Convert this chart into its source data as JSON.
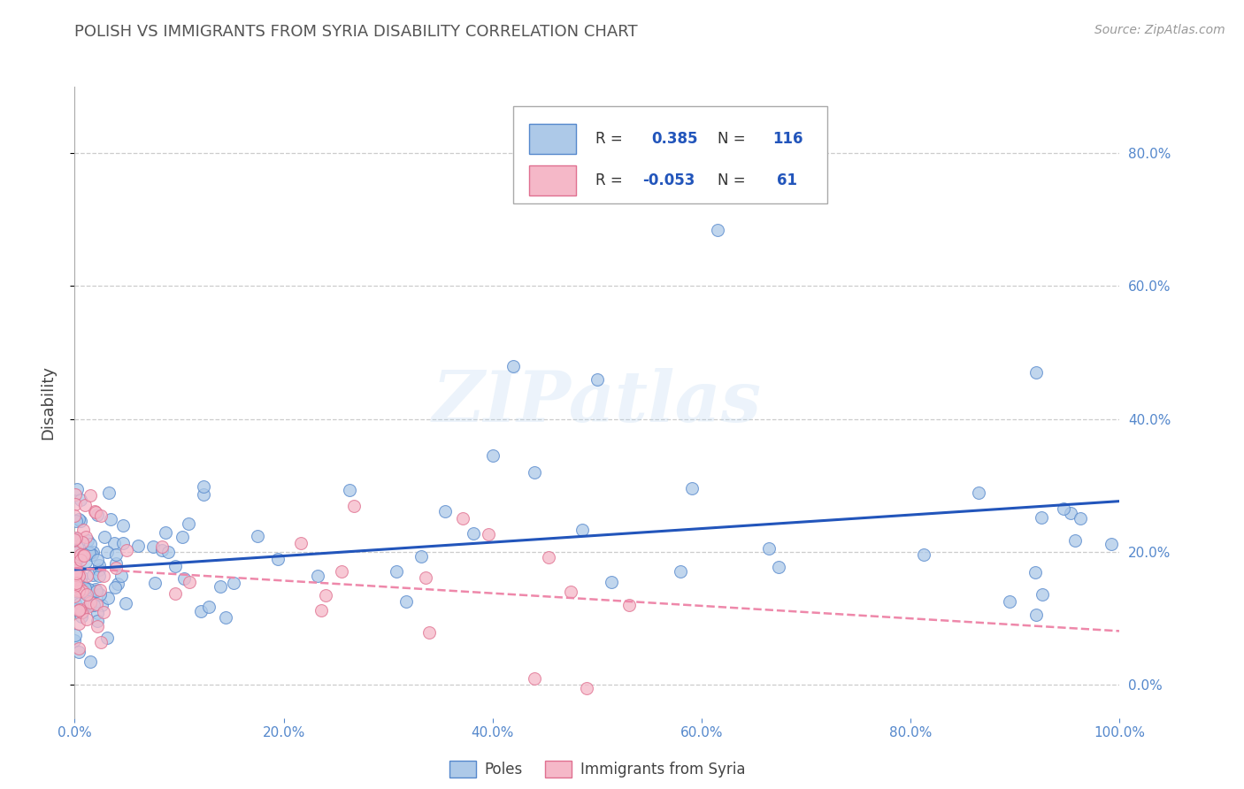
{
  "title": "POLISH VS IMMIGRANTS FROM SYRIA DISABILITY CORRELATION CHART",
  "source": "Source: ZipAtlas.com",
  "ylabel": "Disability",
  "xlim": [
    0.0,
    1.0
  ],
  "ylim": [
    -0.05,
    0.9
  ],
  "yticks": [
    0.0,
    0.2,
    0.4,
    0.6,
    0.8
  ],
  "ytick_labels": [
    "0.0%",
    "20.0%",
    "40.0%",
    "60.0%",
    "80.0%"
  ],
  "xticks": [
    0.0,
    0.2,
    0.4,
    0.6,
    0.8,
    1.0
  ],
  "xtick_labels": [
    "0.0%",
    "20.0%",
    "40.0%",
    "60.0%",
    "80.0%",
    "100.0%"
  ],
  "poles_color": "#adc9e8",
  "poles_edge_color": "#5588cc",
  "syria_color": "#f5b8c8",
  "syria_edge_color": "#e07090",
  "poles_line_color": "#2255bb",
  "syria_line_color": "#ee88aa",
  "legend_R_poles": "0.385",
  "legend_N_poles": "116",
  "legend_R_syria": "-0.053",
  "legend_N_syria": "61",
  "watermark": "ZIPatlas",
  "background_color": "#ffffff",
  "grid_color": "#cccccc",
  "title_color": "#555555",
  "tick_color": "#5588cc",
  "label_color": "#444444"
}
